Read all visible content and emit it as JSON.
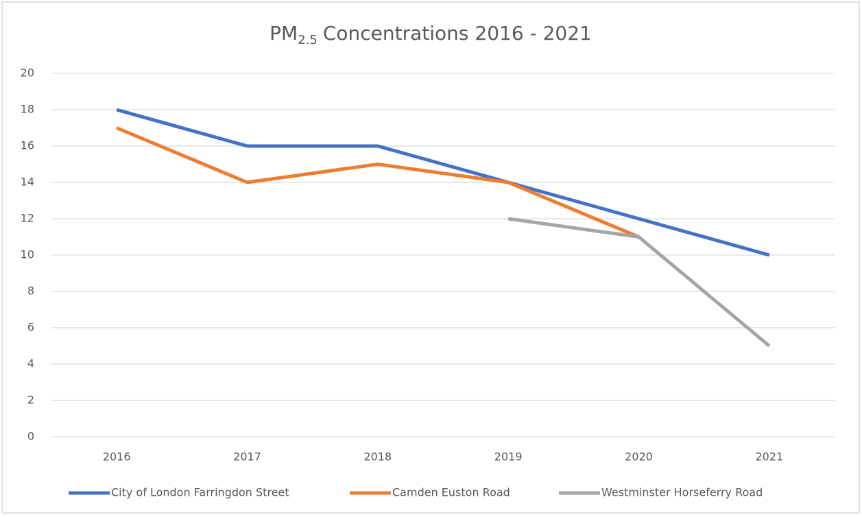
{
  "chart_data": {
    "type": "line",
    "title": [
      "PM",
      "2.5",
      "Concentrations 2016 - 2021"
    ],
    "categories": [
      "2016",
      "2017",
      "2018",
      "2019",
      "2020",
      "2021"
    ],
    "series": [
      {
        "name": "City of London Farringdon Street",
        "color": "#4472c4",
        "values": [
          18,
          16,
          16,
          14,
          12,
          10
        ]
      },
      {
        "name": "Camden Euston Road",
        "color": "#ed7d31",
        "values": [
          17,
          14,
          15,
          14,
          11,
          null
        ]
      },
      {
        "name": "Westminster Horseferry Road",
        "color": "#a5a5a5",
        "values": [
          null,
          null,
          null,
          12,
          11,
          5
        ]
      }
    ],
    "ylim": [
      0,
      20
    ],
    "yticks": [
      0,
      2,
      4,
      6,
      8,
      10,
      12,
      14,
      16,
      18,
      20
    ],
    "grid": true,
    "legend": "bottom"
  }
}
